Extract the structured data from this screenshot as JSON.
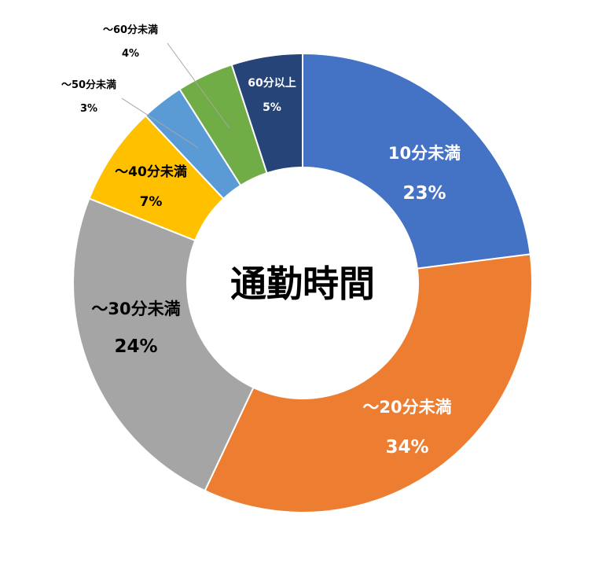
{
  "chart_data": {
    "type": "pie",
    "center_title": "通勤時間",
    "slices": [
      {
        "label": "10分未満",
        "value": 23,
        "pct": "23%",
        "color": "#4472C4",
        "label_color": "#ffffff"
      },
      {
        "label": "～20分未満",
        "value": 34,
        "pct": "34%",
        "color": "#ED7D31",
        "label_color": "#ffffff"
      },
      {
        "label": "～30分未満",
        "value": 24,
        "pct": "24%",
        "color": "#A5A5A5",
        "label_color": "#000000"
      },
      {
        "label": "～40分未満",
        "value": 7,
        "pct": "7%",
        "color": "#FFC000",
        "label_color": "#000000"
      },
      {
        "label": "～50分未満",
        "value": 3,
        "pct": "3%",
        "color": "#5B9BD5",
        "label_color": "#000000"
      },
      {
        "label": "～60分未満",
        "value": 4,
        "pct": "4%",
        "color": "#70AD47",
        "label_color": "#000000"
      },
      {
        "label": "60分以上",
        "value": 5,
        "pct": "5%",
        "color": "#264478",
        "label_color": "#ffffff"
      }
    ]
  }
}
